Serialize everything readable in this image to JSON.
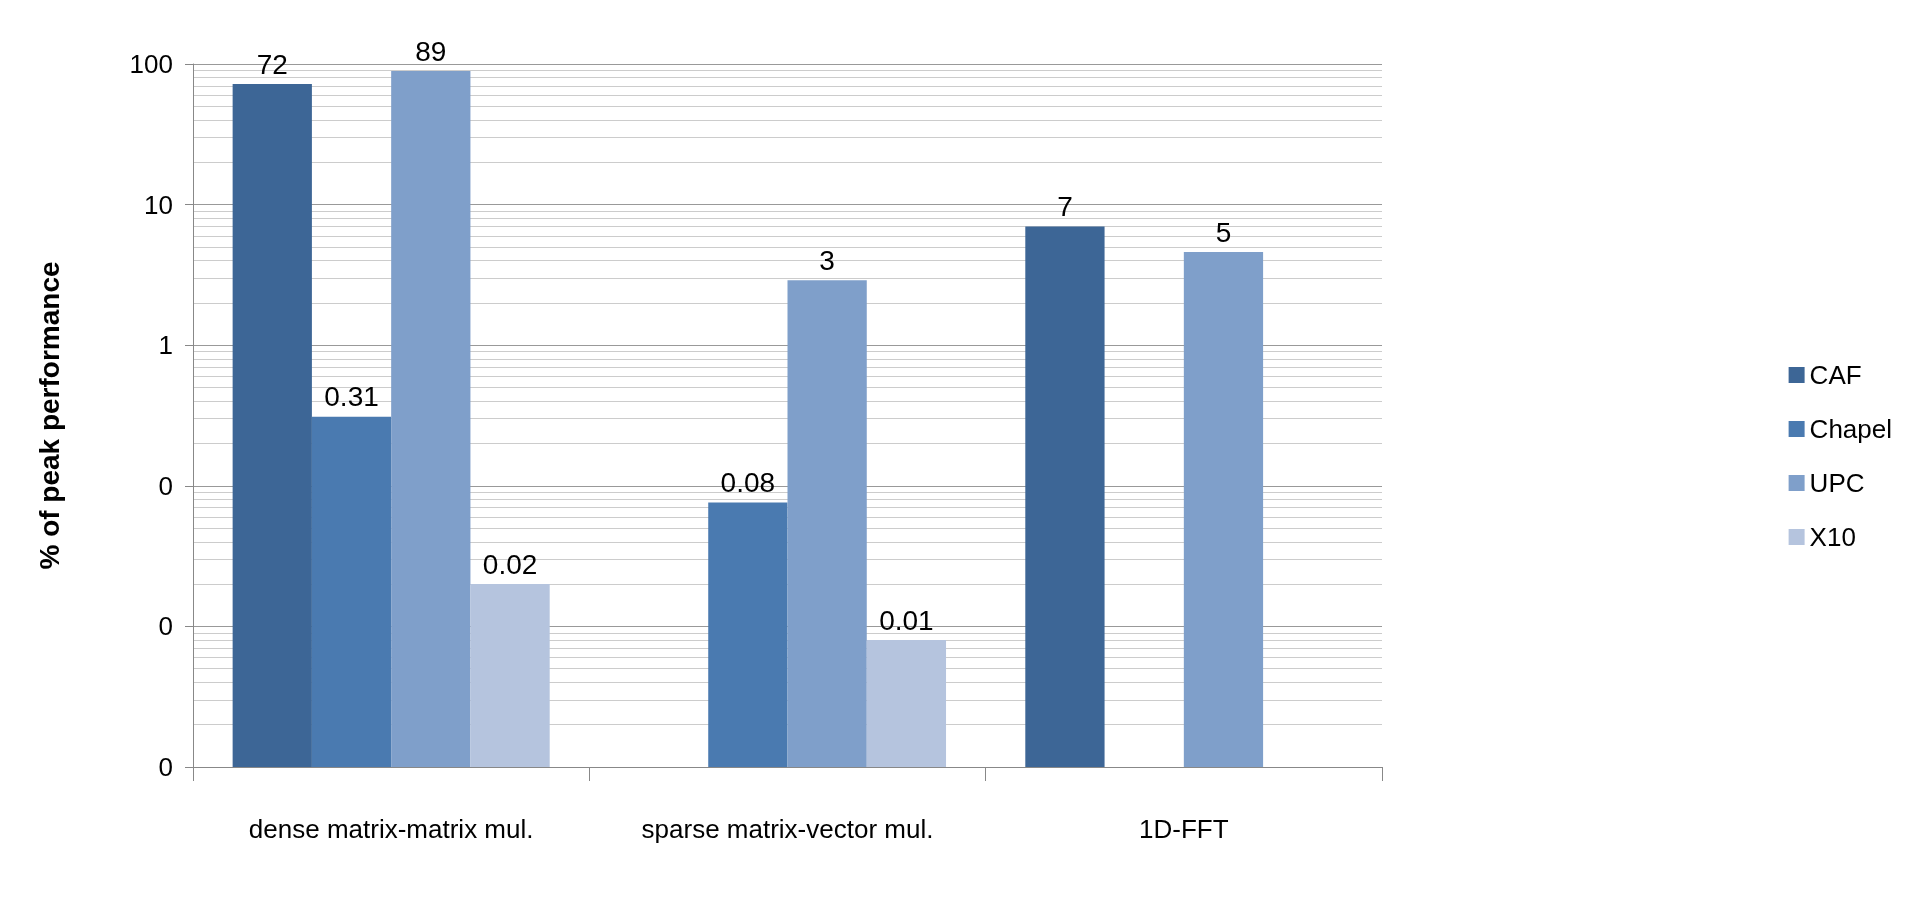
{
  "chart_data": {
    "type": "bar",
    "ylabel": "% of peak performance",
    "categories": [
      "dense matrix-matrix mul.",
      "sparse matrix-vector mul.",
      "1D-FFT"
    ],
    "series": [
      {
        "name": "CAF",
        "color": "#3d6696",
        "values": [
          72,
          null,
          7
        ],
        "value_labels": [
          "72",
          null,
          "7"
        ]
      },
      {
        "name": "Chapel",
        "color": "#4a7ab0",
        "values": [
          0.31,
          0.076,
          null
        ],
        "value_labels": [
          "0.31",
          "0.08",
          null
        ]
      },
      {
        "name": "UPC",
        "color": "#7f9fca",
        "values": [
          89,
          2.9,
          4.6
        ],
        "value_labels": [
          "89",
          "3",
          "5"
        ]
      },
      {
        "name": "X10",
        "color": "#b5c4de",
        "values": [
          0.02,
          0.008,
          null
        ],
        "value_labels": [
          "0.02",
          "0.01",
          null
        ]
      }
    ],
    "log": "y",
    "ylim": [
      0.001,
      100
    ],
    "yticks": [
      {
        "value": 0.001,
        "label": "0"
      },
      {
        "value": 0.01,
        "label": "0"
      },
      {
        "value": 0.1,
        "label": "0"
      },
      1,
      10,
      100
    ],
    "grid": "y",
    "legend": "right"
  }
}
